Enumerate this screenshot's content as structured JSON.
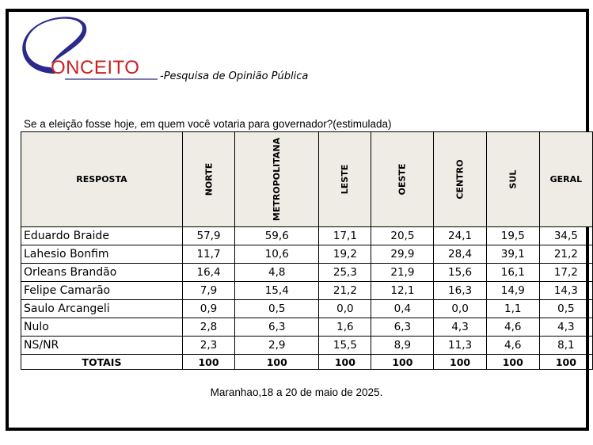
{
  "logo": {
    "text": "ONCEITO"
  },
  "header": {
    "subtitle": "-Pesquisa de Opinião Pública"
  },
  "question": "Se a eleição fosse hoje, em quem você votaria para governador?(estimulada)",
  "table": {
    "columns": [
      "RESPOSTA",
      "NORTE",
      "METROPOLITANA",
      "LESTE",
      "OESTE",
      "CENTRO",
      "SUL",
      "GERAL"
    ],
    "rows": [
      [
        "Eduardo Braide",
        "57,9",
        "59,6",
        "17,1",
        "20,5",
        "24,1",
        "19,5",
        "34,5"
      ],
      [
        "Lahesio Bonfim",
        "11,7",
        "10,6",
        "19,2",
        "29,9",
        "28,4",
        "39,1",
        "21,2"
      ],
      [
        "Orleans Brandão",
        "16,4",
        "4,8",
        "25,3",
        "21,9",
        "15,6",
        "16,1",
        "17,2"
      ],
      [
        "Felipe Camarão",
        "7,9",
        "15,4",
        "21,2",
        "12,1",
        "16,3",
        "14,9",
        "14,3"
      ],
      [
        "Saulo Arcangeli",
        "0,9",
        "0,5",
        "0,0",
        "0,4",
        "0,0",
        "1,1",
        "0,5"
      ],
      [
        "Nulo",
        "2,8",
        "6,3",
        "1,6",
        "6,3",
        "4,3",
        "4,6",
        "4,3"
      ],
      [
        "NS/NR",
        "2,3",
        "2,9",
        "15,5",
        "8,9",
        "11,3",
        "4,6",
        "8,1"
      ]
    ],
    "totals": [
      "TOTAIS",
      "100",
      "100",
      "100",
      "100",
      "100",
      "100",
      "100"
    ]
  },
  "footer": "Maranhao,18 a 20 de maio de 2025."
}
